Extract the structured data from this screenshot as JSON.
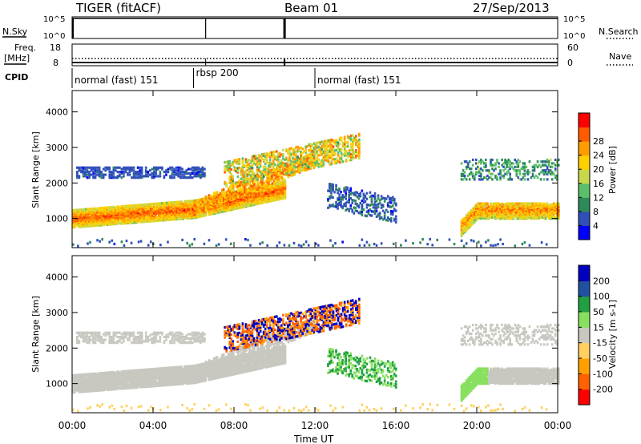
{
  "header": {
    "radar": "TIGER (fitACF)",
    "beam": "Beam 01",
    "date": "27/Sep/2013"
  },
  "status_panels": {
    "nsky_label": "N.Sky",
    "nsearch_label": "N.Search",
    "freq_label": "Freq.",
    "freq_unit": "[MHz]",
    "nave_label": "Nave",
    "cpid_label": "CPID",
    "noise_ticks_left": [
      "10^5",
      "10^0"
    ],
    "noise_ticks_right": [
      "10^5",
      "10^0"
    ],
    "freq_ticks": [
      "18",
      "8"
    ],
    "nave_ticks": [
      "60",
      "0"
    ]
  },
  "cpid_segments": [
    {
      "label": "normal (fast) 151",
      "start_hour": 0.0
    },
    {
      "label": "rbsp 200",
      "start_hour": 6.0
    },
    {
      "label": "normal (fast) 151",
      "start_hour": 12.0
    }
  ],
  "chart_data": [
    {
      "type": "heatmap",
      "panel": "power",
      "title": "",
      "xlabel": "Time UT",
      "ylabel": "Slant Range [km]",
      "xlim_hours": [
        0,
        24
      ],
      "ylim": [
        180,
        4600
      ],
      "x_ticks": [
        "00:00",
        "04:00",
        "08:00",
        "12:00",
        "16:00",
        "20:00",
        "00:00"
      ],
      "y_ticks": [
        1000,
        2000,
        3000,
        4000
      ],
      "colorbar": {
        "label": "Power [dB]",
        "range": [
          0,
          32
        ],
        "ticks": [
          4,
          8,
          12,
          16,
          20,
          24,
          28
        ],
        "colors": [
          "#0000ff",
          "#3050b8",
          "#2e8a5a",
          "#5cc06a",
          "#c8d84a",
          "#ffd000",
          "#ff9c00",
          "#ff5a00",
          "#ff0000"
        ]
      }
    },
    {
      "type": "heatmap",
      "panel": "velocity",
      "title": "",
      "xlabel": "Time UT",
      "ylabel": "Slant Range [km]",
      "xlim_hours": [
        0,
        24
      ],
      "ylim": [
        180,
        4600
      ],
      "x_ticks": [
        "00:00",
        "04:00",
        "08:00",
        "12:00",
        "16:00",
        "20:00",
        "00:00"
      ],
      "y_ticks": [
        1000,
        2000,
        3000,
        4000
      ],
      "colorbar": {
        "label": "Velocity [m s-1]",
        "range": [
          -250,
          250
        ],
        "ticks": [
          200,
          100,
          50,
          15,
          -15,
          -50,
          -100,
          -200
        ],
        "colors": [
          "#ff0000",
          "#ff6000",
          "#ffa000",
          "#ffd060",
          "#c8c8c0",
          "#88e060",
          "#20a040",
          "#2050a0",
          "#0000c0"
        ]
      }
    }
  ]
}
